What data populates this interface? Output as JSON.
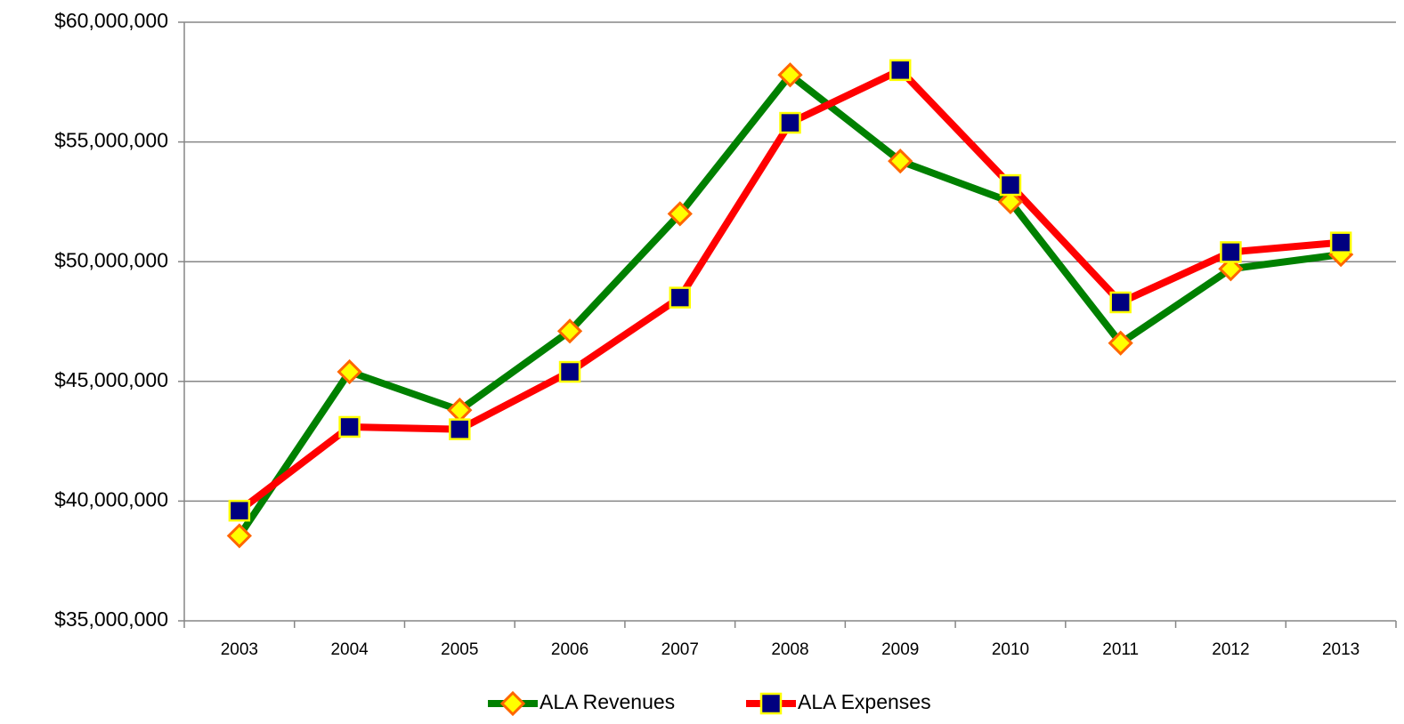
{
  "chart_data": {
    "type": "line",
    "categories": [
      "2003",
      "2004",
      "2005",
      "2006",
      "2007",
      "2008",
      "2009",
      "2010",
      "2011",
      "2012",
      "2013"
    ],
    "series": [
      {
        "name": "ALA Revenues",
        "color": "#008000",
        "marker": "diamond",
        "marker_color": "#ffff00",
        "marker_edge": "#ff6600",
        "values": [
          38550000,
          45400000,
          43800000,
          47100000,
          52000000,
          57800000,
          54200000,
          52500000,
          46600000,
          49700000,
          50300000
        ]
      },
      {
        "name": "ALA Expenses",
        "color": "#ff0000",
        "marker": "square",
        "marker_color": "#000080",
        "marker_edge": "#ffff00",
        "values": [
          39600000,
          43100000,
          43000000,
          45400000,
          48500000,
          55800000,
          58000000,
          53200000,
          48300000,
          50400000,
          50800000
        ]
      }
    ],
    "ylim": [
      35000000,
      60000000
    ],
    "yticks": [
      {
        "value": 35000000,
        "label": "$35,000,000"
      },
      {
        "value": 40000000,
        "label": "$40,000,000"
      },
      {
        "value": 45000000,
        "label": "$45,000,000"
      },
      {
        "value": 50000000,
        "label": "$50,000,000"
      },
      {
        "value": 55000000,
        "label": "$55,000,000"
      },
      {
        "value": 60000000,
        "label": "$60,000,000"
      }
    ],
    "grid": true,
    "legend": "bottom"
  }
}
